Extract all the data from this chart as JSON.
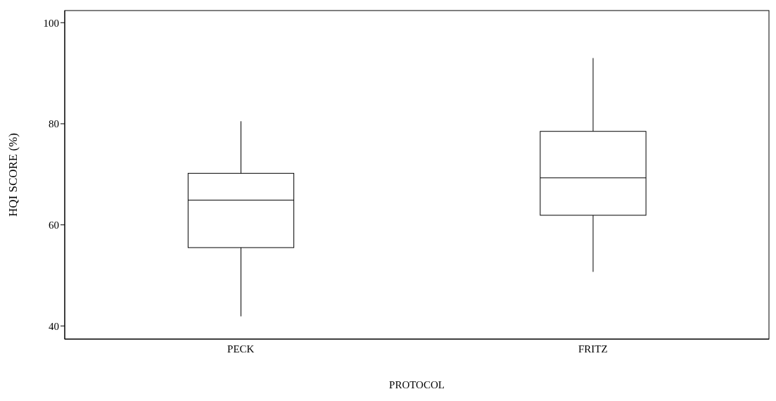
{
  "chart_data": {
    "type": "box",
    "xlabel": "PROTOCOL",
    "ylabel": "HQI SCORE (%)",
    "categories": [
      "PECK",
      "FRITZ"
    ],
    "boxes": [
      {
        "low": 41.9,
        "q1": 55.5,
        "median": 64.9,
        "q3": 70.2,
        "high": 80.5
      },
      {
        "low": 50.7,
        "q1": 61.9,
        "median": 69.3,
        "q3": 78.5,
        "high": 93.0
      }
    ],
    "color": "#000000",
    "ylim": [
      37.4,
      102.4
    ],
    "yticks": [
      40,
      60,
      80,
      100
    ],
    "grid": false
  }
}
